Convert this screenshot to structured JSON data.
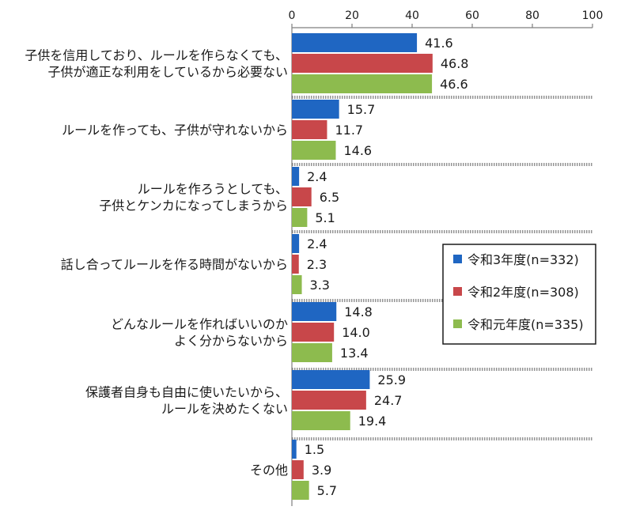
{
  "chart_data": {
    "type": "bar",
    "orientation": "horizontal",
    "xlim": [
      0,
      100
    ],
    "ticks": [
      0,
      20,
      40,
      60,
      80,
      100
    ],
    "grid": false,
    "legend_position": "right",
    "categories": [
      [
        "子供を信用しており、ルールを作らなくても、",
        "子供が適正な利用をしているから必要ない"
      ],
      [
        "ルールを作っても、子供が守れないから"
      ],
      [
        "ルールを作ろうとしても、",
        "子供とケンカになってしまうから"
      ],
      [
        "話し合ってルールを作る時間がないから"
      ],
      [
        "どんなルールを作ればいいのか",
        "よく分からないから"
      ],
      [
        "保護者自身も自由に使いたいから、",
        "ルールを決めたくない"
      ],
      [
        "その他"
      ]
    ],
    "series": [
      {
        "name": "令和3年度(n=332)",
        "color": "#1f66c2",
        "values": [
          41.6,
          15.7,
          2.4,
          2.4,
          14.8,
          25.9,
          1.5
        ]
      },
      {
        "name": "令和2年度(n=308)",
        "color": "#c8474a",
        "values": [
          46.8,
          11.7,
          6.5,
          2.3,
          14.0,
          24.7,
          3.9
        ]
      },
      {
        "name": "令和元年度(n=335)",
        "color": "#8dbb4e",
        "values": [
          46.6,
          14.6,
          5.1,
          3.3,
          13.4,
          19.4,
          5.7
        ]
      }
    ]
  }
}
